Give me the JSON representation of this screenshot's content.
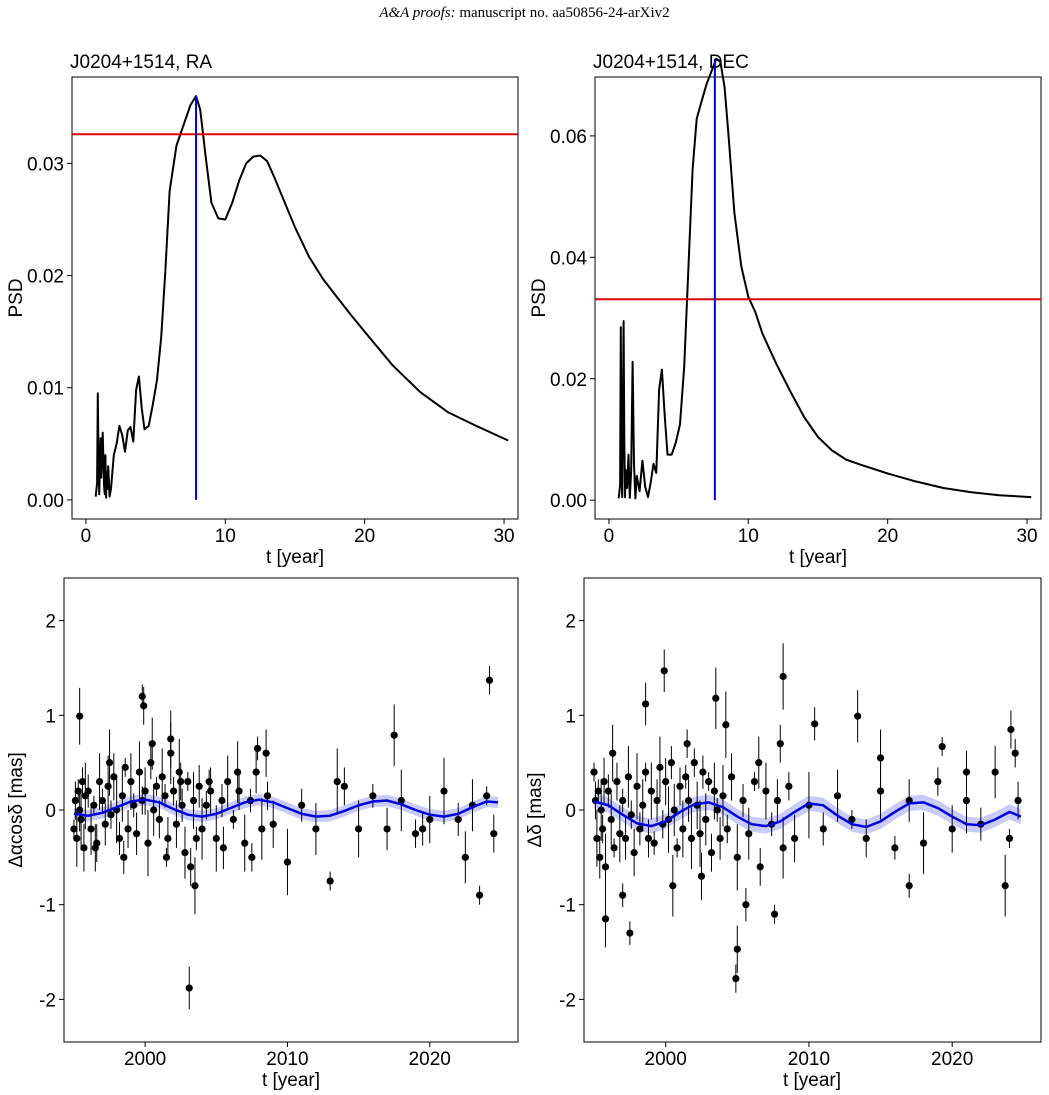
{
  "header": {
    "journal": "A&A proofs:",
    "manuscript": "manuscript no. aa50856-24-arXiv2"
  },
  "chart_data": [
    {
      "type": "line",
      "title": "J0204+1514,  RA",
      "xlabel": "t [year]",
      "ylabel": "PSD",
      "xlim": [
        -1,
        31
      ],
      "ylim": [
        -0.0017,
        0.0377
      ],
      "xticks": [
        0,
        10,
        20,
        30
      ],
      "xtick_labels": [
        "0",
        "10",
        "20",
        "30"
      ],
      "yticks": [
        0.0,
        0.01,
        0.02,
        0.03
      ],
      "ytick_labels": [
        "0.00",
        "0.01",
        "0.02",
        "0.03"
      ],
      "grid": false,
      "series": [
        {
          "color": "#000000",
          "x": [
            0.7,
            0.8,
            0.85,
            0.9,
            0.95,
            1.0,
            1.05,
            1.1,
            1.2,
            1.3,
            1.35,
            1.4,
            1.45,
            1.5,
            1.55,
            1.6,
            1.7,
            1.8,
            1.9,
            2.0,
            2.2,
            2.4,
            2.6,
            2.8,
            3.0,
            3.2,
            3.4,
            3.6,
            3.8,
            4.0,
            4.2,
            4.5,
            4.8,
            5.1,
            5.4,
            5.7,
            6.0,
            6.5,
            7.0,
            7.5,
            7.9,
            8.2,
            8.6,
            9.0,
            9.5,
            10.0,
            10.5,
            11.0,
            11.5,
            12.0,
            12.5,
            13.0,
            13.5,
            14.0,
            15.0,
            16.0,
            17.0,
            18.0,
            19.0,
            20.0,
            22.0,
            24.0,
            26.0,
            28.0,
            30.3
          ],
          "y": [
            0.0003,
            0.0015,
            0.0095,
            0.004,
            0.0005,
            0.003,
            0.0055,
            0.002,
            0.006,
            0.0012,
            0.0005,
            0.004,
            0.0002,
            0.0025,
            0.001,
            0.003,
            0.0003,
            0.001,
            0.0025,
            0.004,
            0.005,
            0.0066,
            0.0058,
            0.0043,
            0.0062,
            0.0065,
            0.0052,
            0.0098,
            0.011,
            0.0082,
            0.0063,
            0.0066,
            0.0085,
            0.0107,
            0.0145,
            0.0205,
            0.0275,
            0.0316,
            0.0334,
            0.0352,
            0.036,
            0.0348,
            0.0305,
            0.0265,
            0.0251,
            0.025,
            0.0265,
            0.0285,
            0.03,
            0.0306,
            0.0307,
            0.0302,
            0.0288,
            0.0273,
            0.0243,
            0.0217,
            0.0197,
            0.0181,
            0.0165,
            0.015,
            0.012,
            0.0096,
            0.0078,
            0.0066,
            0.0053
          ]
        },
        {
          "name": "threshold",
          "color": "#dd0000",
          "y": 0.0326
        },
        {
          "name": "peak",
          "color": "#0000dd",
          "x": 7.9
        }
      ]
    },
    {
      "type": "line",
      "title": "J0204+1514,  DEC",
      "xlabel": "t [year]",
      "ylabel": "PSD",
      "xlim": [
        -1,
        31
      ],
      "ylim": [
        -0.0031,
        0.0697
      ],
      "xticks": [
        0,
        10,
        20,
        30
      ],
      "xtick_labels": [
        "0",
        "10",
        "20",
        "30"
      ],
      "yticks": [
        0.0,
        0.02,
        0.04,
        0.06
      ],
      "ytick_labels": [
        "0.00",
        "0.02",
        "0.04",
        "0.06"
      ],
      "grid": false,
      "series": [
        {
          "color": "#000000",
          "x": [
            0.7,
            0.8,
            0.85,
            0.9,
            0.95,
            1.0,
            1.05,
            1.1,
            1.15,
            1.2,
            1.3,
            1.4,
            1.5,
            1.6,
            1.7,
            1.8,
            1.9,
            2.0,
            2.2,
            2.4,
            2.6,
            2.8,
            3.0,
            3.2,
            3.4,
            3.6,
            3.8,
            4.0,
            4.2,
            4.5,
            4.8,
            5.1,
            5.4,
            5.7,
            6.0,
            6.3,
            6.6,
            7.0,
            7.3,
            7.7,
            8.0,
            8.3,
            8.6,
            9.0,
            9.5,
            10.0,
            10.5,
            11.0,
            11.5,
            12.0,
            13.0,
            14.0,
            15.0,
            16.0,
            17.0,
            18.0,
            20.0,
            22.0,
            24.0,
            26.0,
            28.0,
            30.3
          ],
          "y": [
            0.0003,
            0.0025,
            0.0285,
            0.006,
            0.0005,
            0.015,
            0.0295,
            0.01,
            0.0005,
            0.005,
            0.002,
            0.0075,
            0.0004,
            0.005,
            0.0228,
            0.006,
            0.0003,
            0.004,
            0.0015,
            0.0065,
            0.0022,
            0.0005,
            0.003,
            0.006,
            0.0045,
            0.0182,
            0.0215,
            0.014,
            0.0075,
            0.0075,
            0.0095,
            0.0125,
            0.022,
            0.0382,
            0.0545,
            0.0628,
            0.0653,
            0.0685,
            0.0703,
            0.0727,
            0.0722,
            0.068,
            0.0595,
            0.0473,
            0.0385,
            0.0335,
            0.031,
            0.0275,
            0.025,
            0.0225,
            0.018,
            0.0137,
            0.0104,
            0.0082,
            0.0067,
            0.0059,
            0.0044,
            0.0031,
            0.002,
            0.0013,
            0.0008,
            0.0005
          ]
        },
        {
          "name": "threshold",
          "color": "#dd0000",
          "y": 0.0331
        },
        {
          "name": "peak",
          "color": "#0000dd",
          "x": 7.6
        }
      ]
    },
    {
      "type": "scatter",
      "xlabel": "t [year]",
      "ylabel": "Δαcosδ [mas]",
      "xlim": [
        1994.3,
        2026.2
      ],
      "ylim": [
        -2.45,
        2.45
      ],
      "xticks": [
        2000,
        2010,
        2020
      ],
      "xtick_labels": [
        "2000",
        "2010",
        "2020"
      ],
      "yticks": [
        -2,
        -1,
        0,
        1,
        2
      ],
      "ytick_labels": [
        "-2",
        "-1",
        "0",
        "1",
        "2"
      ],
      "grid": false,
      "series": [
        {
          "name": "fit",
          "color": "#0000dd",
          "x": [
            1995.0,
            1996.0,
            1997.0,
            1998.0,
            1999.0,
            2000.0,
            2001.0,
            2002.0,
            2003.0,
            2004.0,
            2005.0,
            2006.0,
            2007.0,
            2008.0,
            2009.0,
            2010.0,
            2011.0,
            2012.0,
            2013.0,
            2014.0,
            2015.0,
            2016.0,
            2017.0,
            2018.0,
            2019.0,
            2020.0,
            2021.0,
            2022.0,
            2023.0,
            2024.0,
            2024.8
          ],
          "y": [
            -0.04,
            -0.06,
            -0.03,
            0.03,
            0.09,
            0.11,
            0.08,
            0.01,
            -0.05,
            -0.07,
            -0.04,
            0.02,
            0.08,
            0.11,
            0.08,
            0.02,
            -0.04,
            -0.07,
            -0.06,
            -0.01,
            0.05,
            0.09,
            0.1,
            0.06,
            0.0,
            -0.05,
            -0.07,
            -0.04,
            0.03,
            0.09,
            0.08
          ],
          "band": 0.06
        },
        {
          "name": "data",
          "color": "#000000",
          "x": [
            1995.0,
            1995.1,
            1995.2,
            1995.3,
            1995.4,
            1995.5,
            1995.6,
            1995.7,
            1995.8,
            1996.0,
            1996.2,
            1996.4,
            1996.6,
            1996.8,
            1997.0,
            1997.2,
            1997.4,
            1997.6,
            1997.8,
            1998.0,
            1998.2,
            1998.4,
            1998.6,
            1998.8,
            1999.0,
            1999.2,
            1999.4,
            1999.6,
            1999.8,
            2000.0,
            2000.2,
            2000.4,
            2000.6,
            2000.8,
            2001.0,
            2001.2,
            2001.4,
            2001.6,
            2001.8,
            2002.0,
            2002.2,
            2002.4,
            2002.6,
            2002.8,
            2003.0,
            2003.2,
            2003.4,
            2003.6,
            2003.8,
            2004.0,
            2004.3,
            2004.6,
            2005.0,
            2005.4,
            2005.8,
            2006.2,
            2006.6,
            2007.0,
            2007.4,
            2007.8,
            2008.2,
            2008.6,
            2009.0,
            2010.0,
            2011.0,
            2012.0,
            2013.0,
            2014.0,
            2015.0,
            2016.0,
            2017.0,
            2018.0,
            2019.0,
            2020.0,
            2021.0,
            2022.0,
            2023.0,
            2024.0,
            2024.5,
            1995.4,
            1999.8,
            2003.1,
            2017.5,
            2024.2,
            1996.5,
            1997.5,
            1998.5,
            2000.5,
            2001.5,
            2002.5,
            2003.5,
            2004.5,
            2005.5,
            2006.5,
            2007.5,
            2008.5,
            2013.5,
            2019.5,
            2022.5,
            2023.5,
            1999.9,
            2001.8,
            2007.9
          ],
          "y": [
            -0.2,
            0.1,
            -0.3,
            0.2,
            0.0,
            -0.1,
            0.3,
            -0.4,
            0.15,
            0.2,
            -0.2,
            0.05,
            -0.35,
            0.3,
            0.1,
            -0.15,
            0.25,
            -0.05,
            0.35,
            0.0,
            -0.3,
            0.15,
            0.45,
            -0.2,
            0.3,
            0.05,
            -0.25,
            0.4,
            0.1,
            0.2,
            -0.35,
            0.5,
            0.0,
            0.25,
            -0.1,
            0.35,
            0.15,
            -0.3,
            0.6,
            0.2,
            -0.15,
            0.4,
            0.05,
            -0.45,
            0.3,
            -0.6,
            0.1,
            -0.3,
            0.25,
            -0.2,
            0.05,
            0.2,
            -0.3,
            0.1,
            0.3,
            -0.1,
            0.2,
            -0.35,
            0.1,
            0.4,
            -0.2,
            0.15,
            -0.15,
            -0.55,
            0.05,
            -0.2,
            -0.75,
            0.25,
            -0.2,
            0.15,
            -0.2,
            0.1,
            -0.25,
            -0.1,
            0.2,
            -0.1,
            0.05,
            0.15,
            -0.25,
            0.99,
            1.2,
            -1.88,
            0.79,
            1.37,
            -0.4,
            0.5,
            -0.5,
            0.7,
            -0.5,
            0.3,
            -0.8,
            0.3,
            -0.4,
            0.4,
            -0.5,
            0.6,
            0.3,
            -0.2,
            -0.5,
            -0.9,
            1.1,
            0.75,
            0.65
          ]
        }
      ]
    },
    {
      "type": "scatter",
      "xlabel": "t [year]",
      "ylabel": "Δδ [mas]",
      "xlim": [
        1994.3,
        2026.2
      ],
      "ylim": [
        -2.45,
        2.45
      ],
      "xticks": [
        2000,
        2010,
        2020
      ],
      "xtick_labels": [
        "2000",
        "2010",
        "2020"
      ],
      "yticks": [
        -2,
        -1,
        0,
        1,
        2
      ],
      "ytick_labels": [
        "-2",
        "-1",
        "0",
        "1",
        "2"
      ],
      "grid": false,
      "series": [
        {
          "name": "fit",
          "color": "#0000dd",
          "x": [
            1995.0,
            1996.0,
            1997.0,
            1998.0,
            1999.0,
            2000.0,
            2001.0,
            2002.0,
            2003.0,
            2004.0,
            2005.0,
            2006.0,
            2007.0,
            2008.0,
            2009.0,
            2010.0,
            2011.0,
            2012.0,
            2013.0,
            2014.0,
            2015.0,
            2016.0,
            2017.0,
            2018.0,
            2019.0,
            2020.0,
            2021.0,
            2022.0,
            2023.0,
            2024.0,
            2024.8
          ],
          "y": [
            0.09,
            0.05,
            -0.05,
            -0.14,
            -0.17,
            -0.12,
            -0.02,
            0.06,
            0.08,
            0.03,
            -0.07,
            -0.15,
            -0.17,
            -0.12,
            -0.02,
            0.07,
            0.05,
            -0.06,
            -0.15,
            -0.18,
            -0.12,
            -0.02,
            0.07,
            0.08,
            0.02,
            -0.07,
            -0.15,
            -0.16,
            -0.1,
            -0.02,
            -0.07
          ],
          "band": 0.08
        },
        {
          "name": "data",
          "color": "#000000",
          "x": [
            1995.0,
            1995.1,
            1995.2,
            1995.3,
            1995.4,
            1995.5,
            1995.6,
            1995.7,
            1995.8,
            1996.0,
            1996.2,
            1996.4,
            1996.6,
            1996.8,
            1997.0,
            1997.2,
            1997.4,
            1997.6,
            1997.8,
            1998.0,
            1998.2,
            1998.4,
            1998.6,
            1998.8,
            1999.0,
            1999.2,
            1999.4,
            1999.6,
            1999.8,
            2000.0,
            2000.2,
            2000.4,
            2000.6,
            2000.8,
            2001.0,
            2001.2,
            2001.4,
            2001.6,
            2001.8,
            2002.0,
            2002.2,
            2002.4,
            2002.6,
            2002.8,
            2003.0,
            2003.2,
            2003.4,
            2003.6,
            2003.8,
            2004.0,
            2004.3,
            2004.6,
            2005.0,
            2005.4,
            2005.8,
            2006.2,
            2006.6,
            2007.0,
            2007.4,
            2007.8,
            2008.2,
            2008.6,
            2009.0,
            2010.0,
            2011.0,
            2012.0,
            2013.0,
            2014.0,
            2015.0,
            2016.0,
            2017.0,
            2018.0,
            2019.0,
            2020.0,
            2021.0,
            2022.0,
            2023.0,
            2024.0,
            2024.6,
            1995.8,
            1997.5,
            1999.9,
            2003.5,
            2004.9,
            2005.0,
            2008.2,
            2010.4,
            2013.4,
            2019.3,
            2024.1,
            1996.3,
            1997.0,
            1998.6,
            2000.5,
            2001.5,
            2002.5,
            2004.2,
            2005.6,
            2006.5,
            2007.6,
            2008.0,
            2015.0,
            2017.0,
            2021.0,
            2023.7,
            2024.4
          ],
          "y": [
            0.4,
            0.1,
            -0.3,
            0.2,
            -0.5,
            0.0,
            -0.2,
            0.3,
            -0.6,
            0.2,
            -0.1,
            -0.4,
            0.3,
            -0.25,
            0.1,
            -0.3,
            0.35,
            -0.05,
            -0.45,
            0.25,
            -0.2,
            0.05,
            0.4,
            -0.3,
            0.2,
            -0.35,
            0.1,
            0.45,
            -0.15,
            0.3,
            -0.1,
            0.5,
            0.0,
            -0.4,
            0.25,
            -0.2,
            0.35,
            0.1,
            -0.3,
            0.5,
            0.05,
            -0.25,
            0.4,
            -0.1,
            0.3,
            -0.45,
            0.2,
            0.0,
            -0.3,
            0.15,
            -0.2,
            0.35,
            -0.5,
            0.1,
            -0.25,
            0.3,
            -0.6,
            0.2,
            -0.15,
            0.1,
            -0.4,
            0.25,
            -0.3,
            0.05,
            -0.2,
            0.15,
            -0.1,
            -0.3,
            0.2,
            -0.4,
            0.1,
            -0.35,
            0.3,
            -0.2,
            0.1,
            -0.15,
            0.4,
            -0.3,
            0.1,
            -1.15,
            -1.3,
            1.47,
            1.18,
            -1.78,
            -1.47,
            1.41,
            0.91,
            0.99,
            0.67,
            0.85,
            0.6,
            -0.9,
            1.12,
            -0.8,
            0.7,
            -0.7,
            0.9,
            -1.0,
            0.5,
            -1.1,
            0.7,
            0.55,
            -0.8,
            0.4,
            -0.8,
            0.6
          ]
        }
      ]
    }
  ]
}
